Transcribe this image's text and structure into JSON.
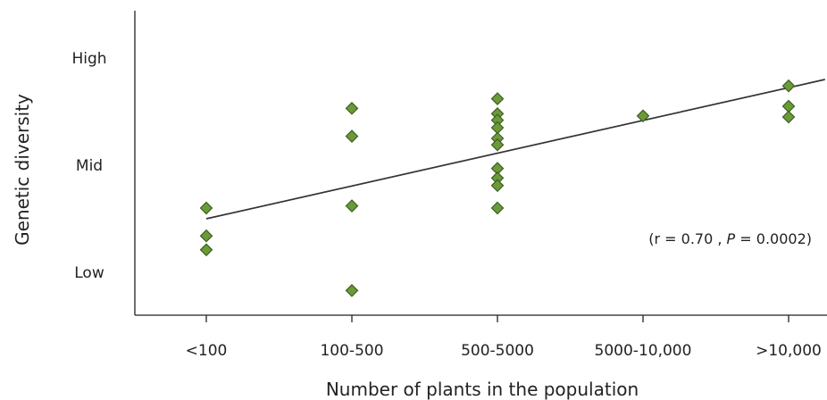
{
  "chart_data": {
    "type": "scatter",
    "xlabel": "Number of plants in the population",
    "ylabel": "Genetic diversity",
    "categories": [
      "<100",
      "100-500",
      "500-5000",
      "5000-10,000",
      ">10,000"
    ],
    "y_ticks": [
      {
        "label": "Low",
        "value": 0
      },
      {
        "label": "Mid",
        "value": 1
      },
      {
        "label": "High",
        "value": 2
      }
    ],
    "ylim": [
      -0.35,
      2.25
    ],
    "points": [
      {
        "x": "<100",
        "y": 0.6
      },
      {
        "x": "<100",
        "y": 0.34
      },
      {
        "x": "<100",
        "y": 0.21
      },
      {
        "x": "100-500",
        "y": 1.53
      },
      {
        "x": "100-500",
        "y": 1.27
      },
      {
        "x": "100-500",
        "y": 0.62
      },
      {
        "x": "100-500",
        "y": -0.17
      },
      {
        "x": "500-5000",
        "y": 1.62
      },
      {
        "x": "500-5000",
        "y": 1.48
      },
      {
        "x": "500-5000",
        "y": 1.42
      },
      {
        "x": "500-5000",
        "y": 1.35
      },
      {
        "x": "500-5000",
        "y": 1.25
      },
      {
        "x": "500-5000",
        "y": 1.19
      },
      {
        "x": "500-5000",
        "y": 0.97
      },
      {
        "x": "500-5000",
        "y": 0.88
      },
      {
        "x": "500-5000",
        "y": 0.81
      },
      {
        "x": "500-5000",
        "y": 0.6
      },
      {
        "x": "5000-10,000",
        "y": 1.46
      },
      {
        "x": ">10,000",
        "y": 1.74
      },
      {
        "x": ">10,000",
        "y": 1.55
      },
      {
        "x": ">10,000",
        "y": 1.45
      }
    ],
    "trendline": {
      "x_start": 0,
      "y_start": 0.5,
      "x_end": 4.25,
      "y_end": 1.8
    },
    "annotation_parts": [
      "(r = 0.70 , ",
      "P",
      " = 0.0002)"
    ],
    "marker_fill": "#6b9a3a",
    "marker_stroke": "#3f5f1f",
    "line_color": "#333333",
    "grid": false,
    "legend": "none"
  }
}
